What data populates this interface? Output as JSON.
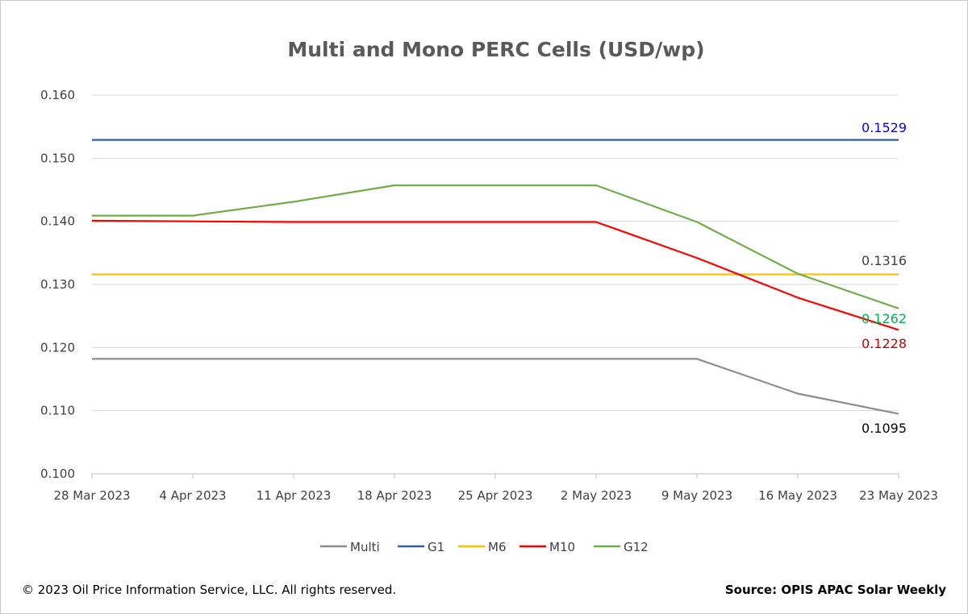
{
  "chart_data": {
    "type": "line",
    "title": "Multi and Mono PERC Cells (USD/wp)",
    "categories": [
      "28 Mar 2023",
      "4 Apr 2023",
      "11 Apr 2023",
      "18 Apr 2023",
      "25 Apr 2023",
      "2 May 2023",
      "9 May 2023",
      "16 May 2023",
      "23 May 2023"
    ],
    "ylim": [
      0.1,
      0.16
    ],
    "y_ticks": [
      "0.100",
      "0.110",
      "0.120",
      "0.130",
      "0.140",
      "0.150",
      "0.160"
    ],
    "grid": true,
    "legend_position": "bottom",
    "series": [
      {
        "name": "Multi",
        "color": "#8c8c8c",
        "values": [
          0.1182,
          0.1182,
          0.1182,
          0.1182,
          0.1182,
          0.1182,
          0.1182,
          0.1127,
          0.1095
        ],
        "end_label": "0.1095",
        "end_label_color": "#000000"
      },
      {
        "name": "G1",
        "color": "#2e5fa8",
        "values": [
          0.1529,
          0.1529,
          0.1529,
          0.1529,
          0.1529,
          0.1529,
          0.1529,
          0.1529,
          0.1529
        ],
        "end_label": "0.1529",
        "end_label_color": "#0000ff"
      },
      {
        "name": "M6",
        "color": "#ffc000",
        "values": [
          0.1316,
          0.1316,
          0.1316,
          0.1316,
          0.1316,
          0.1316,
          0.1316,
          0.1316,
          0.1316
        ],
        "end_label": "0.1316",
        "end_label_color": "#404040"
      },
      {
        "name": "M10",
        "color": "#ff0000",
        "values": [
          0.1401,
          0.14,
          0.1399,
          0.1399,
          0.1399,
          0.1399,
          0.1342,
          0.1279,
          0.1228
        ],
        "end_label": "0.1228",
        "end_label_color": "#c00000"
      },
      {
        "name": "G12",
        "color": "#70ad47",
        "values": [
          0.1409,
          0.1409,
          0.1431,
          0.1457,
          0.1457,
          0.1457,
          0.1399,
          0.1317,
          0.1262
        ],
        "end_label": "0.1262",
        "end_label_color": "#00b050"
      }
    ]
  },
  "footer": {
    "copyright": "© 2023 Oil Price Information Service, LLC. All rights reserved.",
    "source": "Source: OPIS APAC Solar Weekly"
  }
}
